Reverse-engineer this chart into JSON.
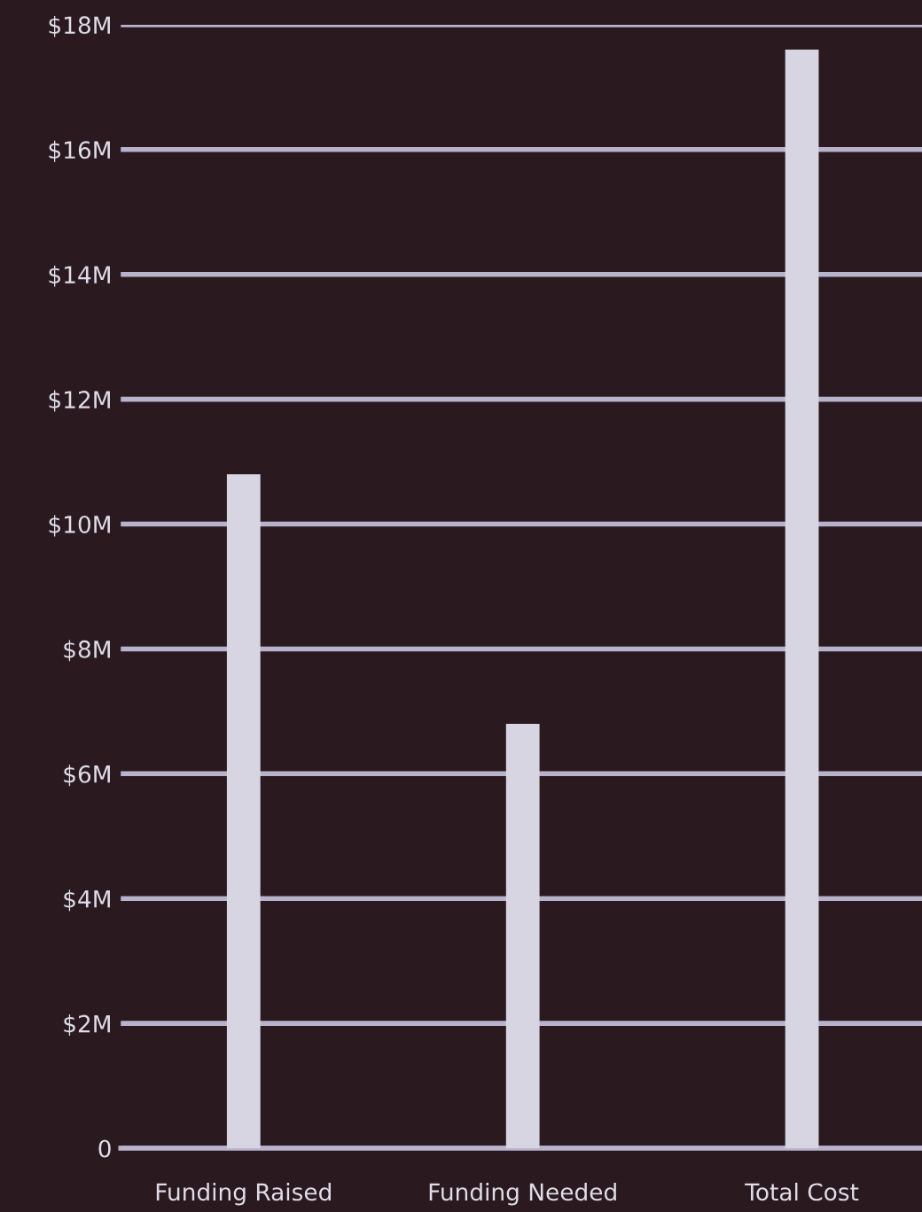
{
  "chart_data": {
    "type": "bar",
    "categories": [
      "Funding Raised",
      "Funding Needed",
      "Total Cost"
    ],
    "values": [
      10.8,
      6.8,
      17.6
    ],
    "color": "#d8d5e2",
    "ylim": [
      0,
      18
    ],
    "yticks": [
      {
        "value": 0,
        "label": "0"
      },
      {
        "value": 2,
        "label": "$2M"
      },
      {
        "value": 4,
        "label": "$4M"
      },
      {
        "value": 6,
        "label": "$6M"
      },
      {
        "value": 8,
        "label": "$8M"
      },
      {
        "value": 10,
        "label": "$10M"
      },
      {
        "value": 12,
        "label": "$12M"
      },
      {
        "value": 14,
        "label": "$14M"
      },
      {
        "value": 16,
        "label": "$16M"
      },
      {
        "value": 18,
        "label": "$18M"
      }
    ],
    "grid": "y"
  }
}
